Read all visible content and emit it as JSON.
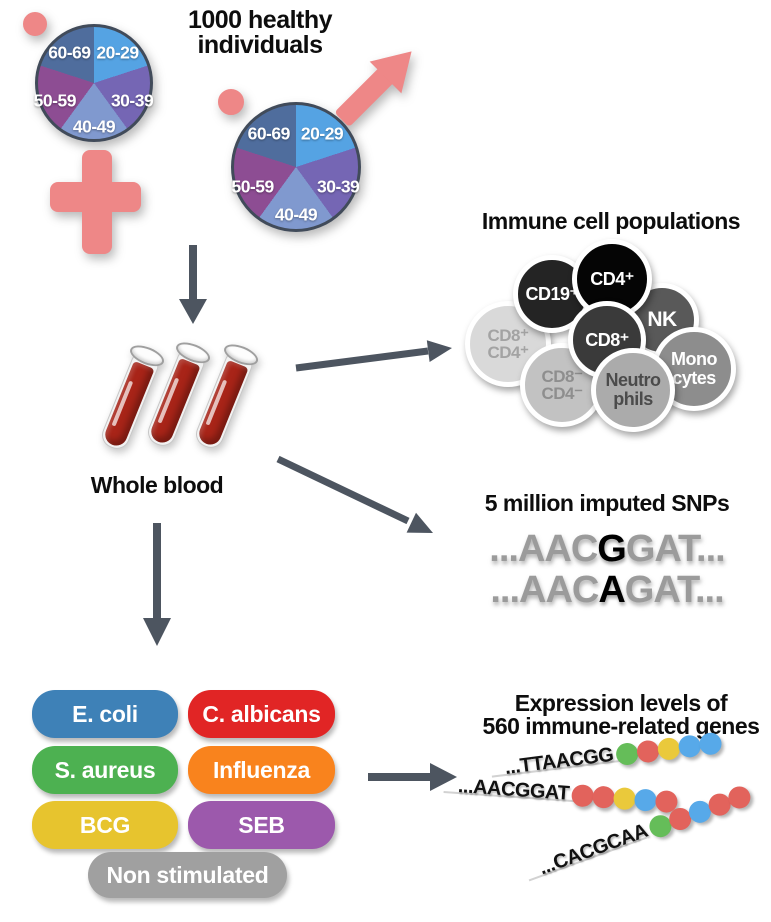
{
  "title": "1000 healthy\nindividuals",
  "demographics": {
    "age_groups": [
      {
        "label": "20-29",
        "color": "#55a3e3"
      },
      {
        "label": "30-39",
        "color": "#7566b4"
      },
      {
        "label": "40-49",
        "color": "#8099cf"
      },
      {
        "label": "50-59",
        "color": "#8d4d93"
      },
      {
        "label": "60-69",
        "color": "#4f6d9d"
      }
    ]
  },
  "whole_blood_label": "Whole blood",
  "immune": {
    "title": "Immune cell populations",
    "cells": [
      {
        "name": "cd19-positive",
        "label": "CD19⁺",
        "bg": "#242424",
        "fg": "#ffffff"
      },
      {
        "name": "cd4-positive",
        "label": "CD4⁺",
        "bg": "#050505",
        "fg": "#ffffff"
      },
      {
        "name": "nk",
        "label": "NK",
        "bg": "#595959",
        "fg": "#ffffff"
      },
      {
        "name": "cd8-positive",
        "label": "CD8⁺",
        "bg": "#3a3a3a",
        "fg": "#ffffff"
      },
      {
        "name": "cd8-pos-cd4-pos",
        "label": "CD8⁺\nCD4⁺",
        "bg": "#d9d9d9",
        "fg": "#a3a3a3"
      },
      {
        "name": "cd8-neg-cd4-neg",
        "label": "CD8⁻\nCD4⁻",
        "bg": "#c2c2c2",
        "fg": "#8e8e8e"
      },
      {
        "name": "neutrophils",
        "label": "Neutro\nphils",
        "bg": "#ababab",
        "fg": "#4b4b4b"
      },
      {
        "name": "monocytes",
        "label": "Mono\ncytes",
        "bg": "#8d8d8d",
        "fg": "#ffffff"
      }
    ]
  },
  "snps": {
    "title": "5 million imputed SNPs",
    "sequences": [
      {
        "prefix": "...AAC",
        "allele": "G",
        "suffix": "GAT..."
      },
      {
        "prefix": "...AAC",
        "allele": "A",
        "suffix": "GAT..."
      }
    ]
  },
  "stimulations": {
    "items": [
      {
        "label": "E. coli",
        "color": "#3e81b7"
      },
      {
        "label": "C. albicans",
        "color": "#e12525"
      },
      {
        "label": "S. aureus",
        "color": "#4db151"
      },
      {
        "label": "Influenza",
        "color": "#f9831d"
      },
      {
        "label": "BCG",
        "color": "#e7c42e"
      },
      {
        "label": "SEB",
        "color": "#9c59ac"
      },
      {
        "label": "Non stimulated",
        "color": "#a0a0a0"
      }
    ]
  },
  "expression": {
    "title": "Expression levels of\n560 immune-related genes",
    "strands": [
      {
        "sequence": "...TTAACGG",
        "dots": [
          "green",
          "red",
          "yellow",
          "blue",
          "blue"
        ]
      },
      {
        "sequence": "...AACGGAT",
        "dots": [
          "red",
          "red",
          "yellow",
          "blue",
          "red"
        ]
      },
      {
        "sequence": "...CACGCAA",
        "dots": [
          "green",
          "red",
          "blue",
          "red",
          "red"
        ]
      }
    ],
    "dot_colors": {
      "green": "#65bd59",
      "red": "#e2635c",
      "yellow": "#eac93b",
      "blue": "#57a9e9"
    }
  },
  "colors": {
    "arrow": "#4d5560",
    "symbol": "#ee8787",
    "blood": "#a82418"
  }
}
